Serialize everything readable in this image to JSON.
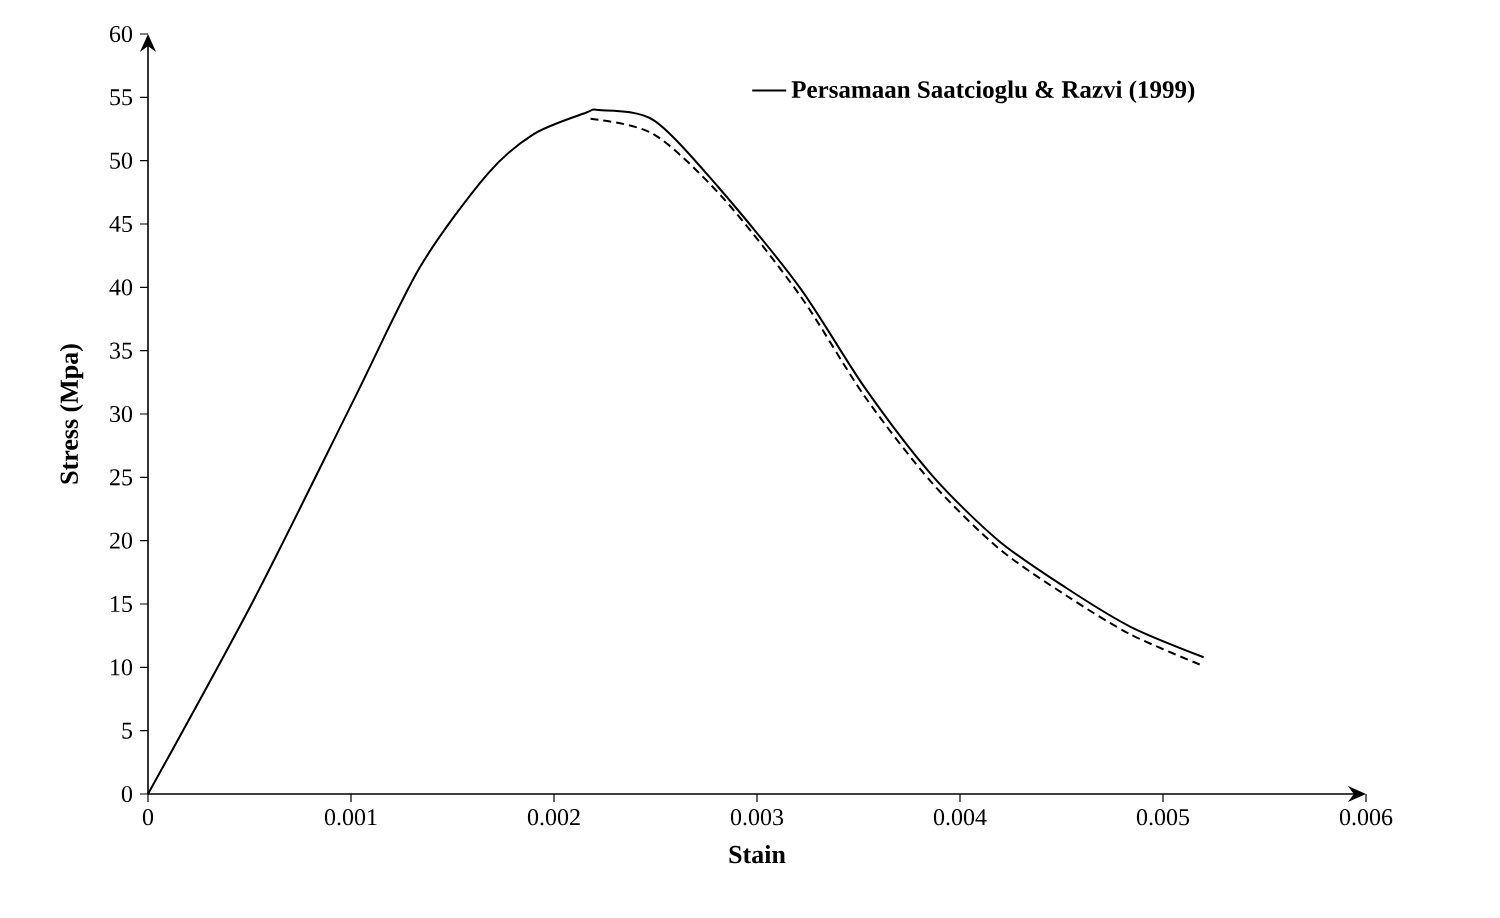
{
  "chart_data": {
    "type": "line",
    "xlabel": "Stain",
    "ylabel": "Stress (Mpa)",
    "xlim": [
      0,
      0.006
    ],
    "ylim": [
      0,
      60
    ],
    "xticks": [
      0,
      0.001,
      0.002,
      0.003,
      0.004,
      0.005,
      0.006
    ],
    "yticks": [
      0,
      5,
      10,
      15,
      20,
      25,
      30,
      35,
      40,
      45,
      50,
      55,
      60
    ],
    "legend": "top right",
    "series": [
      {
        "name": "Persamaan Saatcioglu & Razvi (1999)",
        "color": "#000000",
        "line_style": "solid",
        "x": [
          0,
          0.00052,
          0.00101,
          0.00134,
          0.00167,
          0.0019,
          0.00216,
          0.00222,
          0.00249,
          0.00281,
          0.00321,
          0.00353,
          0.00386,
          0.00419,
          0.00452,
          0.00484,
          0.0052
        ],
        "values": [
          0,
          15.3,
          31.0,
          41.6,
          48.9,
          52.1,
          53.8,
          54.0,
          53.2,
          47.9,
          40.0,
          32.1,
          25.2,
          20.0,
          16.3,
          13.2,
          10.8
        ]
      },
      {
        "color": "#000000",
        "line_style": "dashed",
        "x": [
          0.00218,
          0.00249,
          0.00283,
          0.00321,
          0.00353,
          0.00386,
          0.00419,
          0.00452,
          0.00484,
          0.0052
        ],
        "values": [
          53.3,
          52.1,
          47.1,
          39.4,
          31.4,
          24.6,
          19.4,
          15.7,
          12.6,
          10.1
        ]
      }
    ]
  }
}
